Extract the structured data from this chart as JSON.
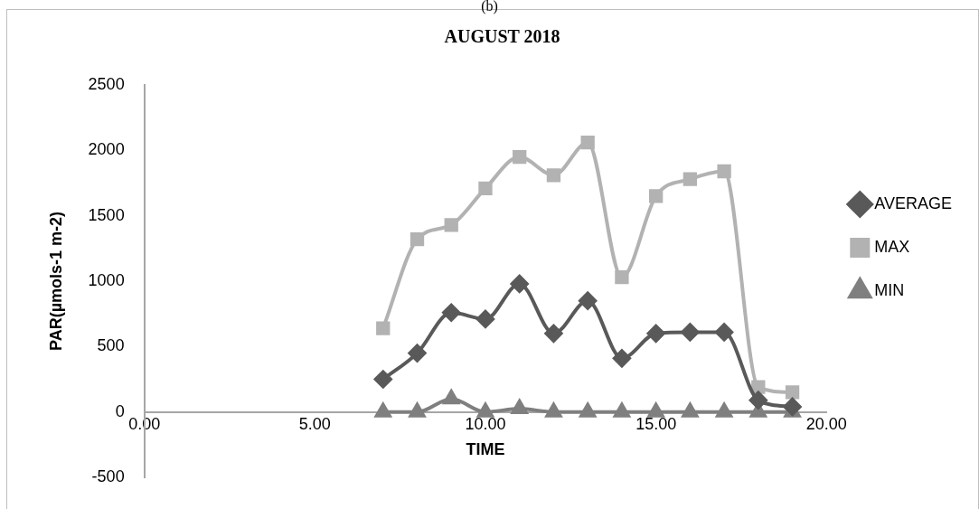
{
  "chart_data": {
    "type": "line",
    "title": "AUGUST 2018",
    "xlabel": "TIME",
    "ylabel": "PAR(µmols-1 m-2)",
    "annotations": [
      "(b)"
    ],
    "x": [
      7,
      8,
      9,
      10,
      11,
      12,
      13,
      14,
      15,
      16,
      17,
      18,
      19
    ],
    "series": [
      {
        "name": "AVERAGE",
        "color": "#595959",
        "marker": "diamond",
        "values": [
          250,
          450,
          760,
          710,
          980,
          600,
          850,
          410,
          600,
          610,
          610,
          90,
          40
        ]
      },
      {
        "name": "MAX",
        "color": "#b2b2b2",
        "marker": "square",
        "values": [
          640,
          1320,
          1430,
          1710,
          1950,
          1810,
          2060,
          1030,
          1650,
          1780,
          1840,
          190,
          150
        ]
      },
      {
        "name": "MIN",
        "color": "#7f7f7f",
        "marker": "triangle",
        "values": [
          0,
          0,
          100,
          0,
          25,
          0,
          0,
          0,
          0,
          0,
          0,
          0,
          0
        ]
      }
    ],
    "xlim": [
      0,
      20
    ],
    "xticks": [
      {
        "value": 0,
        "label": "0.00"
      },
      {
        "value": 5,
        "label": "5.00"
      },
      {
        "value": 10,
        "label": "10.00"
      },
      {
        "value": 15,
        "label": "15.00"
      },
      {
        "value": 20,
        "label": "20.00"
      }
    ],
    "ylim": [
      -500,
      2500
    ],
    "yticks": [
      -500,
      0,
      500,
      1000,
      1500,
      2000,
      2500
    ],
    "legend": "right"
  }
}
